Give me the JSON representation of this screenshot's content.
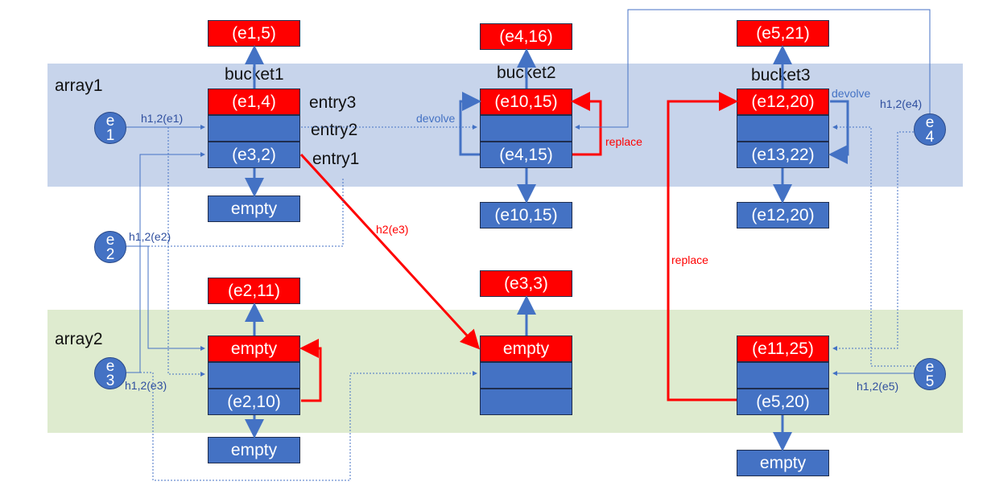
{
  "arrays": {
    "array1": "array1",
    "array2": "array2"
  },
  "buckets": {
    "b1": "bucket1",
    "b2": "bucket2",
    "b3": "bucket3"
  },
  "entry_labels": {
    "entry3": "entry3",
    "entry2": "entry2",
    "entry1": "entry1"
  },
  "cells": {
    "b1_top": "(e1,5)",
    "b1_e3": "(e1,4)",
    "b1_e2": "",
    "b1_e1": "(e3,2)",
    "b1_bottom": "empty",
    "b2_top": "(e4,16)",
    "b2_e3": "(e10,15)",
    "b2_e2": "",
    "b2_e1": "(e4,15)",
    "b2_bottom": "(e10,15)",
    "b3_top": "(e5,21)",
    "b3_e3": "(e12,20)",
    "b3_e2": "",
    "b3_e1": "(e13,22)",
    "b3_bottom": "(e12,20)",
    "a2b1_top": "(e2,11)",
    "a2b1_e3": "empty",
    "a2b1_e2": "",
    "a2b1_e1": "(e2,10)",
    "a2b1_bottom": "empty",
    "a2b2_top": "(e3,3)",
    "a2b2_e3": "empty",
    "a2b2_e2": "",
    "a2b2_e1": "",
    "a2b3_e3": "(e11,25)",
    "a2b3_e2": "",
    "a2b3_e1": "(e5,20)",
    "a2b3_bottom": "empty"
  },
  "elements": {
    "e1": "e\n1",
    "e2": "e\n2",
    "e3": "e\n3",
    "e4": "e\n4",
    "e5": "e\n5"
  },
  "hash_labels": {
    "e1": "h1,2(e1)",
    "e2": "h1,2(e2)",
    "e3": "h1,2(e3)",
    "e4": "h1,2(e4)",
    "e5": "h1,2(e5)",
    "h2e3": "h2(e3)"
  },
  "action_labels": {
    "devolve_1": "devolve",
    "devolve_2": "devolve",
    "replace_1": "replace",
    "replace_2": "replace"
  },
  "colors": {
    "red": "#ff0000",
    "blue": "#4472c4",
    "array1_band": "#c7d4eb",
    "array2_band": "#deebcf"
  }
}
